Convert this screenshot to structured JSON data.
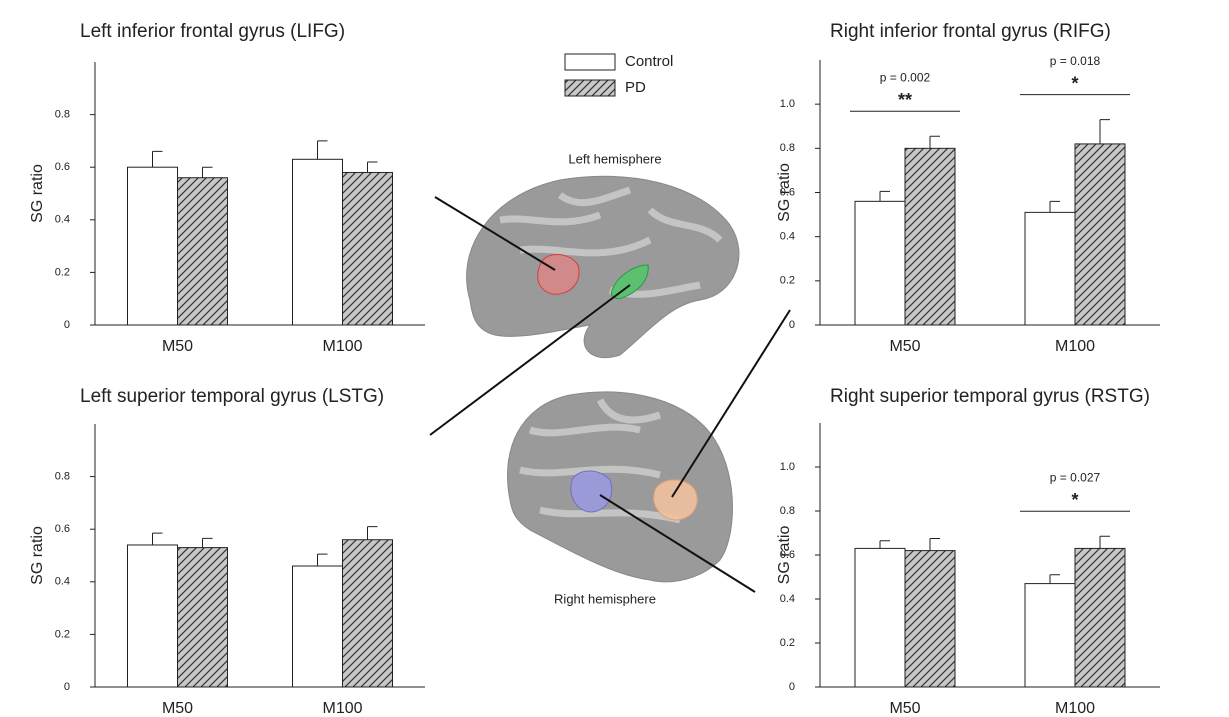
{
  "chart_data": [
    {
      "type": "bar",
      "title": "Left inferior frontal gyrus (LIFG)",
      "ylabel": "SG ratio",
      "categories": [
        "M50",
        "M100"
      ],
      "series": [
        {
          "name": "Control",
          "color": "#ffffff",
          "hatch": false,
          "values": [
            0.6,
            0.63
          ],
          "errors": [
            0.06,
            0.07
          ]
        },
        {
          "name": "PD",
          "color": "#c8c8c8",
          "hatch": true,
          "values": [
            0.56,
            0.58
          ],
          "errors": [
            0.04,
            0.04
          ]
        }
      ],
      "ylim": [
        0,
        1.0
      ],
      "yticks": [
        0,
        0.2,
        0.4,
        0.6,
        0.8
      ]
    },
    {
      "type": "bar",
      "title": "Left superior temporal gyrus (LSTG)",
      "ylabel": "SG ratio",
      "categories": [
        "M50",
        "M100"
      ],
      "series": [
        {
          "name": "Control",
          "color": "#ffffff",
          "hatch": false,
          "values": [
            0.54,
            0.46
          ],
          "errors": [
            0.045,
            0.045
          ]
        },
        {
          "name": "PD",
          "color": "#c8c8c8",
          "hatch": true,
          "values": [
            0.53,
            0.56
          ],
          "errors": [
            0.035,
            0.05
          ]
        }
      ],
      "ylim": [
        0,
        1.0
      ],
      "yticks": [
        0,
        0.2,
        0.4,
        0.6,
        0.8
      ]
    },
    {
      "type": "bar",
      "title": "Right inferior frontal gyrus (RIFG)",
      "ylabel": "SG ratio",
      "categories": [
        "M50",
        "M100"
      ],
      "series": [
        {
          "name": "Control",
          "color": "#ffffff",
          "hatch": false,
          "values": [
            0.56,
            0.51
          ],
          "errors": [
            0.045,
            0.05
          ]
        },
        {
          "name": "PD",
          "color": "#c8c8c8",
          "hatch": true,
          "values": [
            0.8,
            0.82
          ],
          "errors": [
            0.055,
            0.11
          ]
        }
      ],
      "ylim": [
        0,
        1.2
      ],
      "yticks": [
        0,
        0.2,
        0.4,
        0.6,
        0.8,
        {
          "value": 1,
          "label": "1.0"
        }
      ],
      "annotations": [
        {
          "p": "p = 0.002",
          "stars": "**"
        },
        {
          "p": "p = 0.018",
          "stars": "*"
        }
      ]
    },
    {
      "type": "bar",
      "title": "Right superior temporal gyrus (RSTG)",
      "ylabel": "SG ratio",
      "categories": [
        "M50",
        "M100"
      ],
      "series": [
        {
          "name": "Control",
          "color": "#ffffff",
          "hatch": false,
          "values": [
            0.63,
            0.47
          ],
          "errors": [
            0.035,
            0.04
          ]
        },
        {
          "name": "PD",
          "color": "#c8c8c8",
          "hatch": true,
          "values": [
            0.62,
            0.63
          ],
          "errors": [
            0.055,
            0.055
          ]
        }
      ],
      "ylim": [
        0,
        1.2
      ],
      "yticks": [
        0,
        0.2,
        0.4,
        0.6,
        0.8,
        {
          "value": 1,
          "label": "1.0"
        }
      ],
      "annotations": [
        null,
        {
          "p": "p = 0.027",
          "stars": "*"
        }
      ]
    }
  ],
  "brain_labels": [
    "Left hemisphere",
    "Right hemisphere"
  ]
}
